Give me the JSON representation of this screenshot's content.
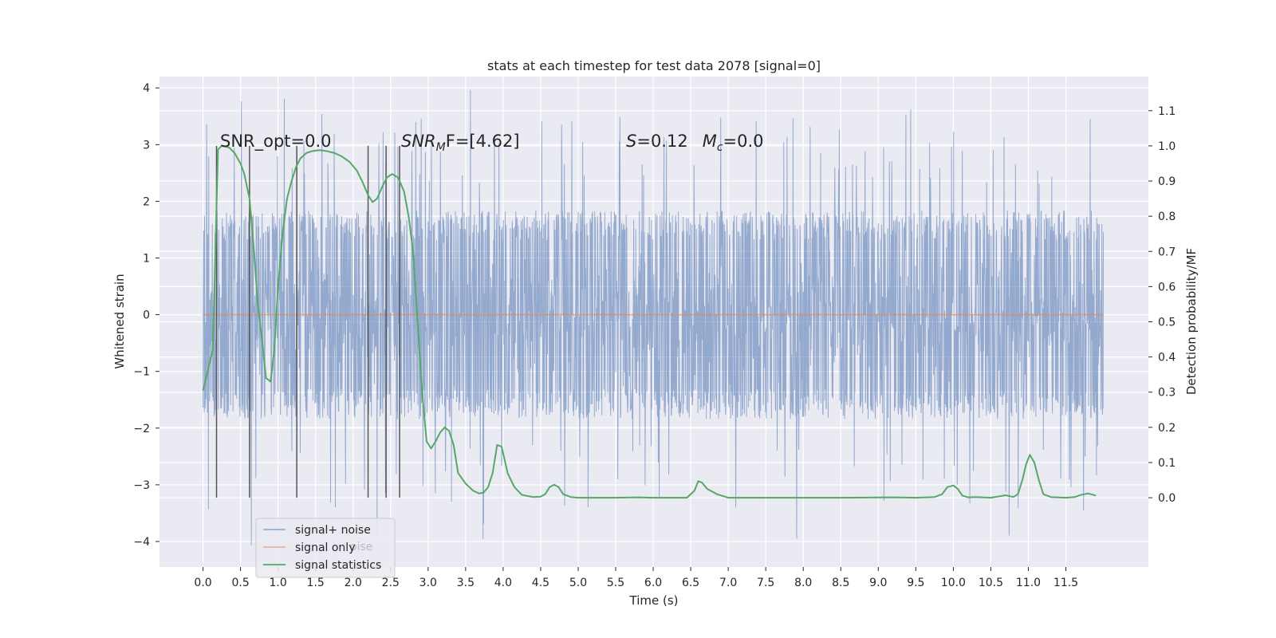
{
  "chart_data": {
    "type": "line",
    "title": "stats at each timestep for test data 2078 [signal=0]",
    "xlabel": "Time (s)",
    "ylabel": "Whitened strain",
    "y2label": "Detection probability/MF",
    "xlim": [
      -0.58,
      12.6
    ],
    "ylim": [
      -4.45,
      4.2
    ],
    "y2lim": [
      -0.197,
      1.197
    ],
    "x_ticks": [
      "0.0",
      "0.5",
      "1.0",
      "1.5",
      "2.0",
      "2.5",
      "3.0",
      "3.5",
      "4.0",
      "4.5",
      "5.0",
      "5.5",
      "6.0",
      "6.5",
      "7.0",
      "7.5",
      "8.0",
      "8.5",
      "9.0",
      "9.5",
      "10.0",
      "10.5",
      "11.0",
      "11.5"
    ],
    "y_ticks": [
      "−4",
      "−3",
      "−2",
      "−1",
      "0",
      "1",
      "2",
      "3",
      "4"
    ],
    "y2_ticks": [
      "0.0",
      "0.1",
      "0.2",
      "0.3",
      "0.4",
      "0.5",
      "0.6",
      "0.7",
      "0.8",
      "0.9",
      "1.0",
      "1.1"
    ],
    "grid": true,
    "legend_position": "lower-left",
    "colors": {
      "signal_noise": "#4c72b0",
      "signal_only": "#dd8452",
      "signal_statistics": "#55a868",
      "markers": "#555555",
      "plot_bg": "#eaeaf2",
      "grid": "#ffffff"
    },
    "series": [
      {
        "name": "signal+ noise",
        "x_range": [
          0.0,
          12.0
        ],
        "typical_amplitude": 1.75,
        "max_abs": 4.1,
        "note_values": "dense whitened-noise trace sampled over 0–12 s"
      },
      {
        "name": "signal only",
        "x": [
          0.0,
          12.0
        ],
        "y": [
          0,
          0
        ]
      },
      {
        "name": "signal statistics",
        "axis": "right",
        "x": [
          0.0,
          0.13,
          0.2,
          0.25,
          0.3,
          0.35,
          0.42,
          0.5,
          0.55,
          0.62,
          0.68,
          0.73,
          0.78,
          0.84,
          0.9,
          0.95,
          1.0,
          1.06,
          1.12,
          1.18,
          1.24,
          1.3,
          1.38,
          1.45,
          1.55,
          1.65,
          1.75,
          1.85,
          1.95,
          2.05,
          2.12,
          2.2,
          2.26,
          2.32,
          2.38,
          2.45,
          2.52,
          2.6,
          2.68,
          2.74,
          2.8,
          2.86,
          2.92,
          2.98,
          3.04,
          3.1,
          3.16,
          3.22,
          3.28,
          3.34,
          3.4,
          3.5,
          3.6,
          3.68,
          3.74,
          3.8,
          3.86,
          3.92,
          3.98,
          4.06,
          4.15,
          4.25,
          4.4,
          4.5,
          4.56,
          4.62,
          4.68,
          4.74,
          4.8,
          4.9,
          5.0,
          5.5,
          5.8,
          6.0,
          6.2,
          6.45,
          6.55,
          6.6,
          6.65,
          6.72,
          6.85,
          7.0,
          8.5,
          9.2,
          9.5,
          9.75,
          9.85,
          9.92,
          10.0,
          10.06,
          10.12,
          10.2,
          10.3,
          10.5,
          10.7,
          10.8,
          10.86,
          10.92,
          10.97,
          11.02,
          11.08,
          11.14,
          11.2,
          11.3,
          11.5,
          11.62,
          11.7,
          11.8,
          11.9
        ],
        "y": [
          0.305,
          0.42,
          0.99,
          1.0,
          0.998,
          0.995,
          0.98,
          0.95,
          0.92,
          0.85,
          0.7,
          0.55,
          0.46,
          0.34,
          0.33,
          0.42,
          0.6,
          0.75,
          0.85,
          0.9,
          0.94,
          0.965,
          0.98,
          0.985,
          0.988,
          0.985,
          0.98,
          0.97,
          0.955,
          0.93,
          0.9,
          0.86,
          0.84,
          0.85,
          0.88,
          0.91,
          0.92,
          0.91,
          0.87,
          0.8,
          0.7,
          0.5,
          0.3,
          0.16,
          0.14,
          0.16,
          0.185,
          0.2,
          0.19,
          0.15,
          0.07,
          0.04,
          0.02,
          0.012,
          0.015,
          0.03,
          0.07,
          0.15,
          0.145,
          0.07,
          0.03,
          0.008,
          0.002,
          0.003,
          0.01,
          0.03,
          0.037,
          0.03,
          0.01,
          0.002,
          0.0,
          0.0,
          0.001,
          0.0,
          0.0,
          0.0,
          0.02,
          0.047,
          0.043,
          0.025,
          0.01,
          0.0,
          0.0,
          0.001,
          0.0,
          0.002,
          0.01,
          0.03,
          0.035,
          0.025,
          0.006,
          0.001,
          0.002,
          0.0,
          0.007,
          0.002,
          0.01,
          0.05,
          0.095,
          0.122,
          0.1,
          0.05,
          0.01,
          0.002,
          0.0,
          0.002,
          0.008,
          0.012,
          0.006
        ]
      }
    ],
    "marker_lines_x": [
      0.18,
      0.62,
      1.25,
      2.2,
      2.44,
      2.62
    ],
    "annotations": {
      "snr_opt": "SNR_opt=0.0",
      "snr_mf_base": "SNR",
      "snr_mf_sub": "M",
      "snr_mf_rest": "F=[4.62]",
      "s_letter": "S",
      "s_value": "=0.12",
      "mc_letter": "M",
      "mc_sub": "c",
      "mc_value": "=0.0"
    },
    "legend": {
      "entries": [
        "signal+ noise",
        "signal only",
        "signal statistics"
      ],
      "ghost": "oise"
    }
  }
}
